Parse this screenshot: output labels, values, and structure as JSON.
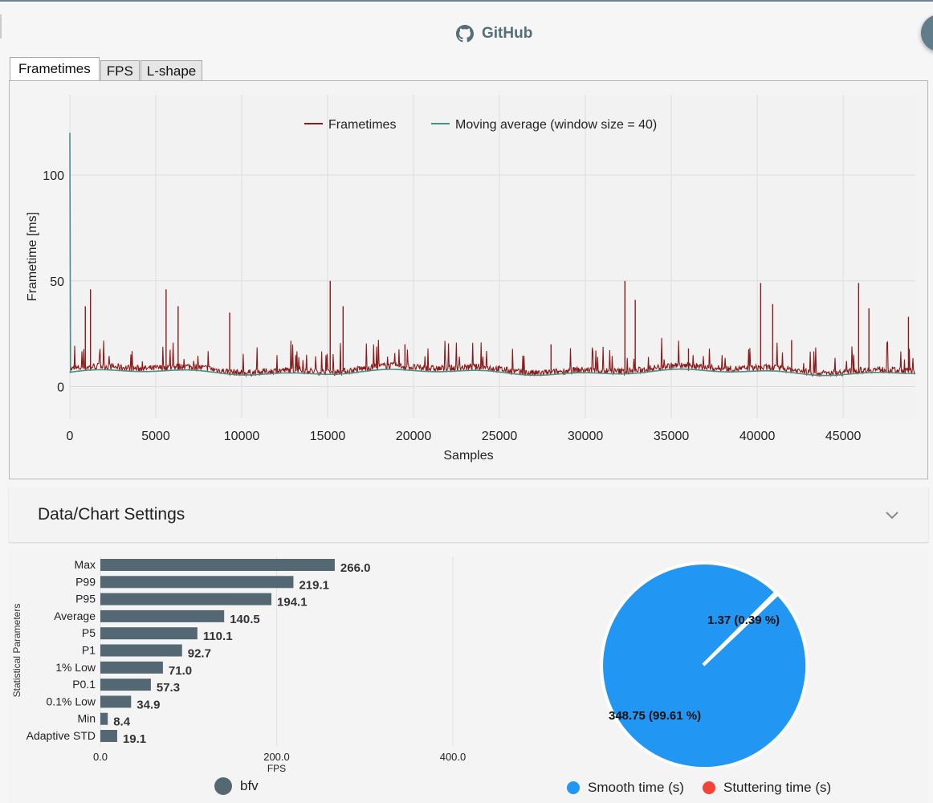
{
  "header": {
    "github_label": "GitHub"
  },
  "tabs": [
    {
      "label": "Frametimes",
      "active": true
    },
    {
      "label": "FPS",
      "active": false
    },
    {
      "label": "L-shape",
      "active": false
    }
  ],
  "frametime_chart": {
    "type": "line",
    "xlabel": "Samples",
    "ylabel": "Frametime [ms]",
    "xlim": [
      0,
      49200
    ],
    "ylim": [
      -15,
      138
    ],
    "x_ticks": [
      "0",
      "5000",
      "10000",
      "15000",
      "20000",
      "25000",
      "30000",
      "35000",
      "40000",
      "45000"
    ],
    "x_tick_values": [
      0,
      5000,
      10000,
      15000,
      20000,
      25000,
      30000,
      35000,
      40000,
      45000
    ],
    "y_ticks": [
      "0",
      "50",
      "100"
    ],
    "y_tick_values": [
      0,
      50,
      100
    ],
    "series": [
      {
        "name": "Frametimes",
        "color": "#8b1a1a",
        "baseline_ms": 7.5,
        "noise_ms": 1.6
      },
      {
        "name": "Moving average (window size = 40)",
        "color": "#4a8f86",
        "baseline_ms": 6.8,
        "initial_spike_ms": 120
      }
    ],
    "spikes": [
      {
        "x": 900,
        "y": 38
      },
      {
        "x": 1200,
        "y": 46
      },
      {
        "x": 5600,
        "y": 46
      },
      {
        "x": 6300,
        "y": 38
      },
      {
        "x": 9300,
        "y": 35
      },
      {
        "x": 15150,
        "y": 50
      },
      {
        "x": 15900,
        "y": 38
      },
      {
        "x": 32300,
        "y": 50
      },
      {
        "x": 32900,
        "y": 41
      },
      {
        "x": 40200,
        "y": 49
      },
      {
        "x": 40900,
        "y": 39
      },
      {
        "x": 45900,
        "y": 49
      },
      {
        "x": 46500,
        "y": 37
      },
      {
        "x": 48800,
        "y": 33
      },
      {
        "x": 19500,
        "y": 20
      },
      {
        "x": 28000,
        "y": 20
      },
      {
        "x": 36000,
        "y": 18
      },
      {
        "x": 42000,
        "y": 22
      }
    ]
  },
  "settings": {
    "title": "Data/Chart Settings"
  },
  "stats_chart": {
    "type": "bar",
    "ylabel": "Statistical Parameters",
    "xlabel": "FPS",
    "xlim": [
      0,
      400
    ],
    "x_ticks": [
      "0.0",
      "200.0",
      "400.0"
    ],
    "x_tick_values": [
      0,
      200,
      400
    ],
    "bar_color": "#546874",
    "categories": [
      "Max",
      "P99",
      "P95",
      "Average",
      "P5",
      "P1",
      "1% Low",
      "P0.1",
      "0.1% Low",
      "Min",
      "Adaptive STD"
    ],
    "values": [
      266.0,
      219.1,
      194.1,
      140.5,
      110.1,
      92.7,
      71.0,
      57.3,
      34.9,
      8.4,
      19.1
    ],
    "value_labels": [
      "266.0",
      "219.1",
      "194.1",
      "140.5",
      "110.1",
      "92.7",
      "71.0",
      "57.3",
      "34.9",
      "8.4",
      "19.1"
    ],
    "legend": {
      "label": "bfv",
      "color": "#546874"
    }
  },
  "pie_chart": {
    "type": "pie",
    "slices": [
      {
        "name": "Smooth time (s)",
        "value": 348.75,
        "label": "348.75 (99.61 %)",
        "color": "#2196f3"
      },
      {
        "name": "Stuttering time (s)",
        "value": 1.37,
        "label": "1.37 (0.39 %)",
        "color": "#f44336"
      }
    ]
  }
}
